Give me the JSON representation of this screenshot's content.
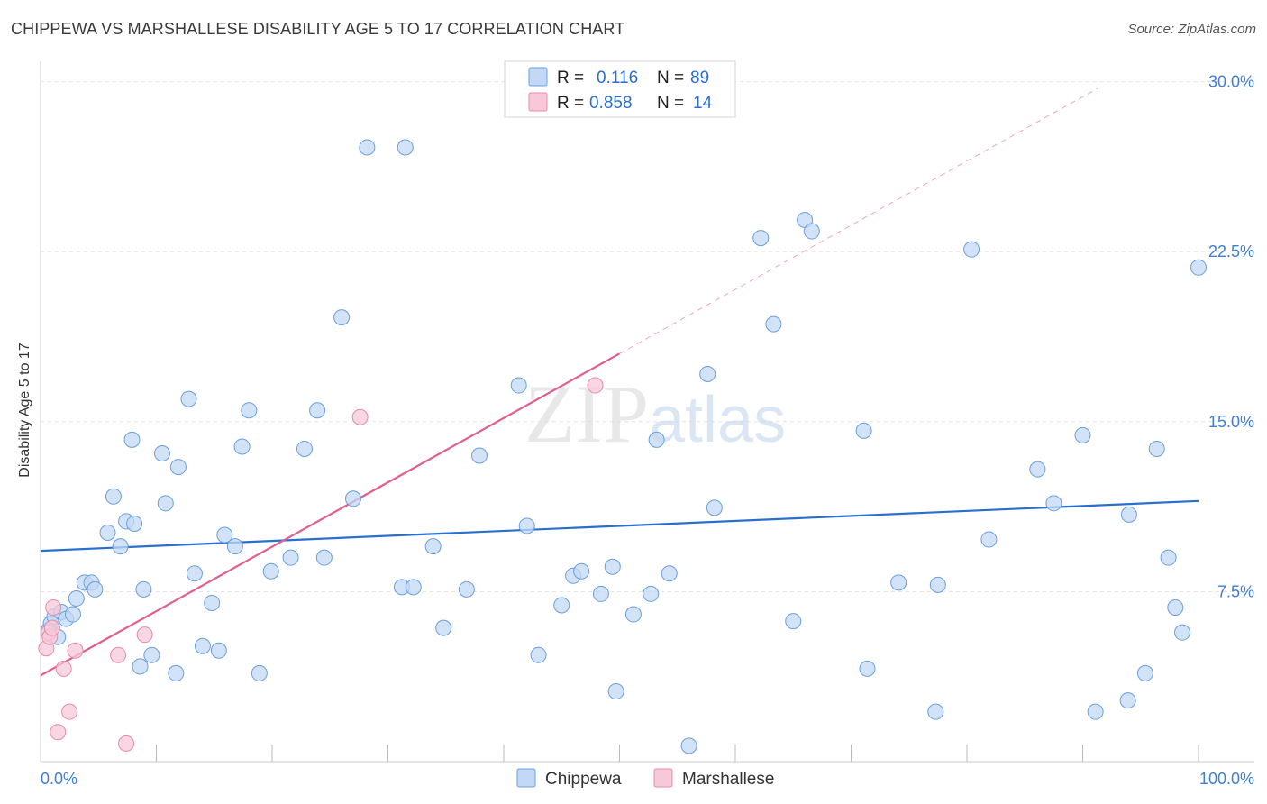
{
  "title": "CHIPPEWA VS MARSHALLESE DISABILITY AGE 5 TO 17 CORRELATION CHART",
  "source": "Source: ZipAtlas.com",
  "watermark": {
    "zip": "ZIP",
    "atlas": "atlas"
  },
  "chart_data": {
    "type": "scatter",
    "title": "CHIPPEWA VS MARSHALLESE DISABILITY AGE 5 TO 17 CORRELATION CHART",
    "xlabel": "",
    "ylabel": "Disability Age 5 to 17",
    "xlim": [
      0,
      100
    ],
    "ylim": [
      0,
      30.5
    ],
    "x_tick_labels": [
      "0.0%",
      "100.0%"
    ],
    "y_ticks": [
      7.5,
      15.0,
      22.5,
      30.0
    ],
    "y_tick_labels": [
      "7.5%",
      "15.0%",
      "22.5%",
      "30.0%"
    ],
    "legend_position": "top-center",
    "bottom_legend": [
      "Chippewa",
      "Marshallese"
    ],
    "series": [
      {
        "name": "Chippewa",
        "color": "#6b9fe0",
        "fill": "#c3d8f4",
        "line_color": "#2a6fcf",
        "R": "0.116",
        "N": "89",
        "trend": {
          "x": [
            0,
            100
          ],
          "y": [
            9.3,
            11.5
          ]
        },
        "points": [
          [
            0.7,
            5.8
          ],
          [
            0.9,
            6.1
          ],
          [
            1.2,
            6.4
          ],
          [
            1.5,
            5.5
          ],
          [
            1.8,
            6.6
          ],
          [
            2.2,
            6.3
          ],
          [
            3.1,
            7.2
          ],
          [
            3.8,
            7.9
          ],
          [
            4.4,
            7.9
          ],
          [
            2.8,
            6.5
          ],
          [
            4.7,
            7.6
          ],
          [
            5.8,
            10.1
          ],
          [
            6.3,
            11.7
          ],
          [
            6.9,
            9.5
          ],
          [
            7.4,
            10.6
          ],
          [
            7.9,
            14.2
          ],
          [
            8.1,
            10.5
          ],
          [
            8.6,
            4.2
          ],
          [
            8.9,
            7.6
          ],
          [
            9.6,
            4.7
          ],
          [
            10.5,
            13.6
          ],
          [
            10.8,
            11.4
          ],
          [
            11.7,
            3.9
          ],
          [
            11.9,
            13.0
          ],
          [
            12.8,
            16.0
          ],
          [
            13.3,
            8.3
          ],
          [
            14.0,
            5.1
          ],
          [
            14.8,
            7.0
          ],
          [
            15.4,
            4.9
          ],
          [
            15.9,
            10.0
          ],
          [
            16.8,
            9.5
          ],
          [
            17.4,
            13.9
          ],
          [
            18.0,
            15.5
          ],
          [
            18.9,
            3.9
          ],
          [
            19.9,
            8.4
          ],
          [
            21.6,
            9.0
          ],
          [
            22.8,
            13.8
          ],
          [
            23.9,
            15.5
          ],
          [
            24.5,
            9.0
          ],
          [
            26.0,
            19.6
          ],
          [
            27.0,
            11.6
          ],
          [
            28.2,
            27.1
          ],
          [
            31.2,
            7.7
          ],
          [
            31.5,
            27.1
          ],
          [
            32.2,
            7.7
          ],
          [
            33.9,
            9.5
          ],
          [
            34.8,
            5.9
          ],
          [
            36.8,
            7.6
          ],
          [
            37.9,
            13.5
          ],
          [
            41.3,
            16.6
          ],
          [
            42.0,
            10.4
          ],
          [
            43.0,
            4.7
          ],
          [
            45.0,
            6.9
          ],
          [
            46.0,
            8.2
          ],
          [
            46.7,
            8.4
          ],
          [
            48.4,
            7.4
          ],
          [
            49.4,
            8.6
          ],
          [
            49.7,
            3.1
          ],
          [
            51.2,
            6.5
          ],
          [
            52.7,
            7.4
          ],
          [
            53.2,
            14.2
          ],
          [
            54.3,
            8.3
          ],
          [
            56.0,
            0.7
          ],
          [
            57.6,
            17.1
          ],
          [
            58.2,
            11.2
          ],
          [
            62.2,
            23.1
          ],
          [
            63.3,
            19.3
          ],
          [
            65.0,
            6.2
          ],
          [
            66.0,
            23.9
          ],
          [
            66.6,
            23.4
          ],
          [
            71.1,
            14.6
          ],
          [
            71.4,
            4.1
          ],
          [
            74.1,
            7.9
          ],
          [
            77.3,
            2.2
          ],
          [
            77.5,
            7.8
          ],
          [
            80.4,
            22.6
          ],
          [
            81.9,
            9.8
          ],
          [
            86.1,
            12.9
          ],
          [
            87.5,
            11.4
          ],
          [
            90.0,
            14.4
          ],
          [
            91.1,
            2.2
          ],
          [
            93.9,
            2.7
          ],
          [
            94.0,
            10.9
          ],
          [
            95.4,
            3.9
          ],
          [
            96.4,
            13.8
          ],
          [
            97.4,
            9.0
          ],
          [
            98.0,
            6.8
          ],
          [
            98.6,
            5.7
          ],
          [
            100.0,
            21.8
          ]
        ]
      },
      {
        "name": "Marshallese",
        "color": "#e88aa6",
        "fill": "#f7c9d8",
        "line_color": "#e0608a",
        "R": "0.858",
        "N": "14",
        "trend": {
          "x": [
            0,
            50
          ],
          "y": [
            3.8,
            18.0
          ]
        },
        "trend_extension": {
          "x": [
            50,
            91.3
          ],
          "y": [
            18.0,
            29.7
          ]
        },
        "points": [
          [
            0.5,
            5.0
          ],
          [
            0.7,
            5.7
          ],
          [
            0.8,
            5.5
          ],
          [
            1.1,
            6.8
          ],
          [
            1.5,
            1.3
          ],
          [
            2.0,
            4.1
          ],
          [
            2.5,
            2.2
          ],
          [
            3.0,
            4.9
          ],
          [
            6.7,
            4.7
          ],
          [
            7.4,
            0.8
          ],
          [
            9.0,
            5.6
          ],
          [
            27.6,
            15.2
          ],
          [
            47.9,
            16.6
          ],
          [
            1.0,
            5.9
          ]
        ]
      }
    ]
  }
}
